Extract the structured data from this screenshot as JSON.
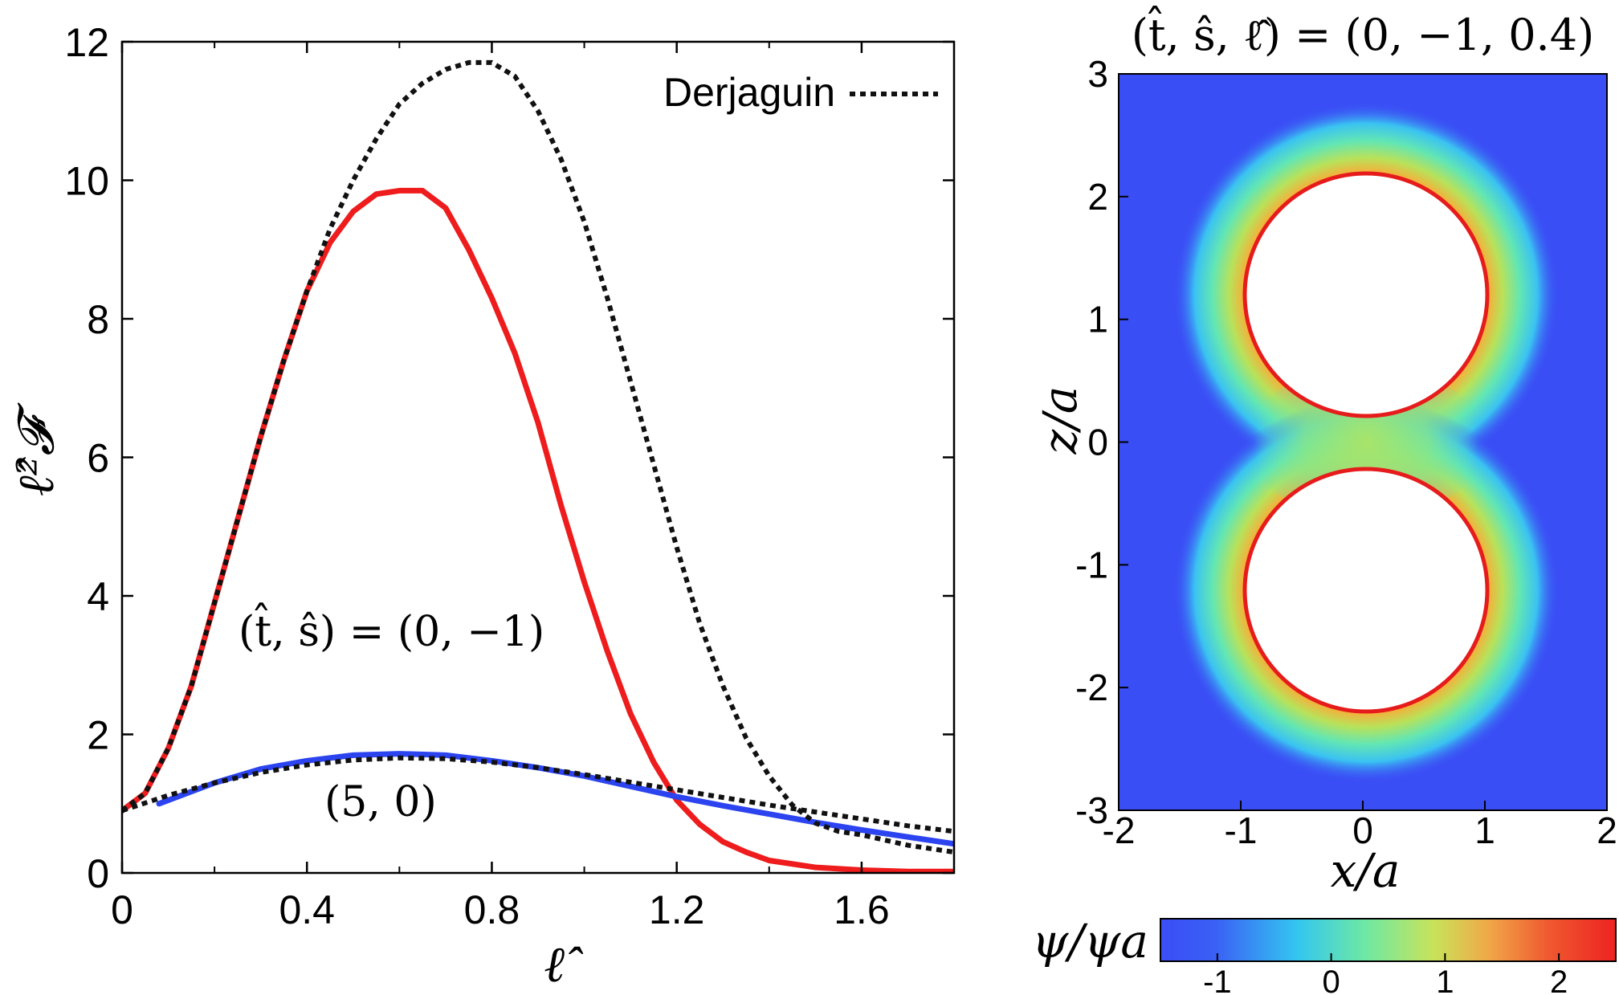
{
  "chart_data": [
    {
      "type": "line",
      "title": "",
      "xlabel": "ℓ̂",
      "ylabel": "ℓ̂²𝓕",
      "xlim": [
        0,
        1.8
      ],
      "ylim": [
        0,
        12
      ],
      "xticks": [
        0,
        0.4,
        0.8,
        1.2,
        1.6
      ],
      "xtick_labels": [
        "0",
        "0.4",
        "0.8",
        "1.2",
        "1.6"
      ],
      "yticks": [
        0,
        2,
        4,
        6,
        8,
        10,
        12
      ],
      "ytick_labels": [
        "0",
        "2",
        "4",
        "6",
        "8",
        "10",
        "12"
      ],
      "grid": false,
      "legend": {
        "placement": "top-right",
        "entries": [
          {
            "label": "Derjaguin",
            "style": "dotted",
            "color": "#111111"
          }
        ]
      },
      "annotations": [
        {
          "text": "(t̂, ŝ) = (0, −1)",
          "x": 0.6,
          "y": 3.4
        },
        {
          "text": "(5, 0)",
          "x": 0.55,
          "y": 0.95
        }
      ],
      "series": [
        {
          "style": "solid",
          "color": "#ee1c1c",
          "x": [
            0,
            0.05,
            0.1,
            0.15,
            0.2,
            0.25,
            0.3,
            0.35,
            0.4,
            0.45,
            0.5,
            0.55,
            0.6,
            0.65,
            0.7,
            0.75,
            0.8,
            0.85,
            0.9,
            0.95,
            1.0,
            1.05,
            1.1,
            1.15,
            1.2,
            1.25,
            1.3,
            1.35,
            1.4,
            1.5,
            1.6,
            1.7,
            1.8
          ],
          "y": [
            0.9,
            1.15,
            1.8,
            2.7,
            3.9,
            5.1,
            6.3,
            7.4,
            8.4,
            9.1,
            9.55,
            9.8,
            9.85,
            9.85,
            9.6,
            9.0,
            8.3,
            7.5,
            6.5,
            5.3,
            4.2,
            3.2,
            2.3,
            1.6,
            1.05,
            0.7,
            0.45,
            0.3,
            0.18,
            0.08,
            0.04,
            0.02,
            0.02
          ]
        },
        {
          "style": "solid",
          "color": "#2b44f0",
          "x": [
            0.08,
            0.2,
            0.3,
            0.4,
            0.5,
            0.6,
            0.7,
            0.8,
            0.9,
            1.0,
            1.1,
            1.2,
            1.3,
            1.4,
            1.5,
            1.6,
            1.7,
            1.8
          ],
          "y": [
            1.0,
            1.3,
            1.5,
            1.62,
            1.7,
            1.72,
            1.7,
            1.62,
            1.52,
            1.4,
            1.25,
            1.1,
            0.97,
            0.85,
            0.73,
            0.62,
            0.52,
            0.42
          ]
        },
        {
          "name": "Derjaguin",
          "style": "dotted",
          "color": "#111111",
          "x": [
            0,
            0.05,
            0.1,
            0.15,
            0.2,
            0.25,
            0.3,
            0.35,
            0.4,
            0.45,
            0.5,
            0.55,
            0.6,
            0.65,
            0.7,
            0.75,
            0.8,
            0.85,
            0.9,
            0.95,
            1.0,
            1.05,
            1.1,
            1.15,
            1.2,
            1.25,
            1.3,
            1.35,
            1.4,
            1.45,
            1.5,
            1.55,
            1.6,
            1.7,
            1.8
          ],
          "y": [
            0.9,
            1.15,
            1.8,
            2.7,
            3.9,
            5.1,
            6.3,
            7.4,
            8.4,
            9.3,
            10.0,
            10.6,
            11.1,
            11.4,
            11.6,
            11.7,
            11.7,
            11.5,
            11.0,
            10.3,
            9.4,
            8.3,
            7.1,
            5.9,
            4.7,
            3.6,
            2.7,
            1.95,
            1.4,
            0.98,
            0.72,
            0.6,
            0.55,
            0.4,
            0.3
          ]
        },
        {
          "name": "Derjaguin",
          "style": "dotted",
          "color": "#111111",
          "x": [
            0,
            0.1,
            0.2,
            0.3,
            0.4,
            0.5,
            0.6,
            0.7,
            0.8,
            0.9,
            1.0,
            1.1,
            1.2,
            1.3,
            1.4,
            1.5,
            1.6,
            1.7,
            1.8
          ],
          "y": [
            0.9,
            1.12,
            1.3,
            1.45,
            1.56,
            1.63,
            1.66,
            1.65,
            1.6,
            1.52,
            1.42,
            1.31,
            1.2,
            1.09,
            0.98,
            0.88,
            0.78,
            0.68,
            0.6
          ]
        }
      ]
    },
    {
      "type": "heatmap",
      "title": "(t̂, ŝ, ℓ̂) = (0, −1, 0.4)",
      "xlabel": "x/a",
      "ylabel": "z/a",
      "xlim": [
        -2,
        2
      ],
      "ylim": [
        -3,
        3
      ],
      "xticks": [
        -2,
        -1,
        0,
        1,
        2
      ],
      "xtick_labels": [
        "-2",
        "-1",
        "0",
        "1",
        "2"
      ],
      "yticks": [
        -3,
        -2,
        -1,
        0,
        1,
        2,
        3
      ],
      "ytick_labels": [
        "-3",
        "-2",
        "-1",
        "0",
        "1",
        "2",
        "3"
      ],
      "particles": [
        {
          "center": [
            0,
            1.2
          ],
          "radius": 1.0
        },
        {
          "center": [
            0,
            -1.2
          ],
          "radius": 1.0
        }
      ],
      "colorbar": {
        "label": "ψ/ψa",
        "range": [
          -1.5,
          2.5
        ],
        "ticks": [
          -1,
          0,
          1,
          2
        ],
        "tick_labels": [
          "-1",
          "0",
          "1",
          "2"
        ],
        "colors": [
          "#3a4ef5",
          "#33c6f0",
          "#6ee8a4",
          "#c8e35a",
          "#f08a40",
          "#ee2222"
        ]
      }
    }
  ]
}
